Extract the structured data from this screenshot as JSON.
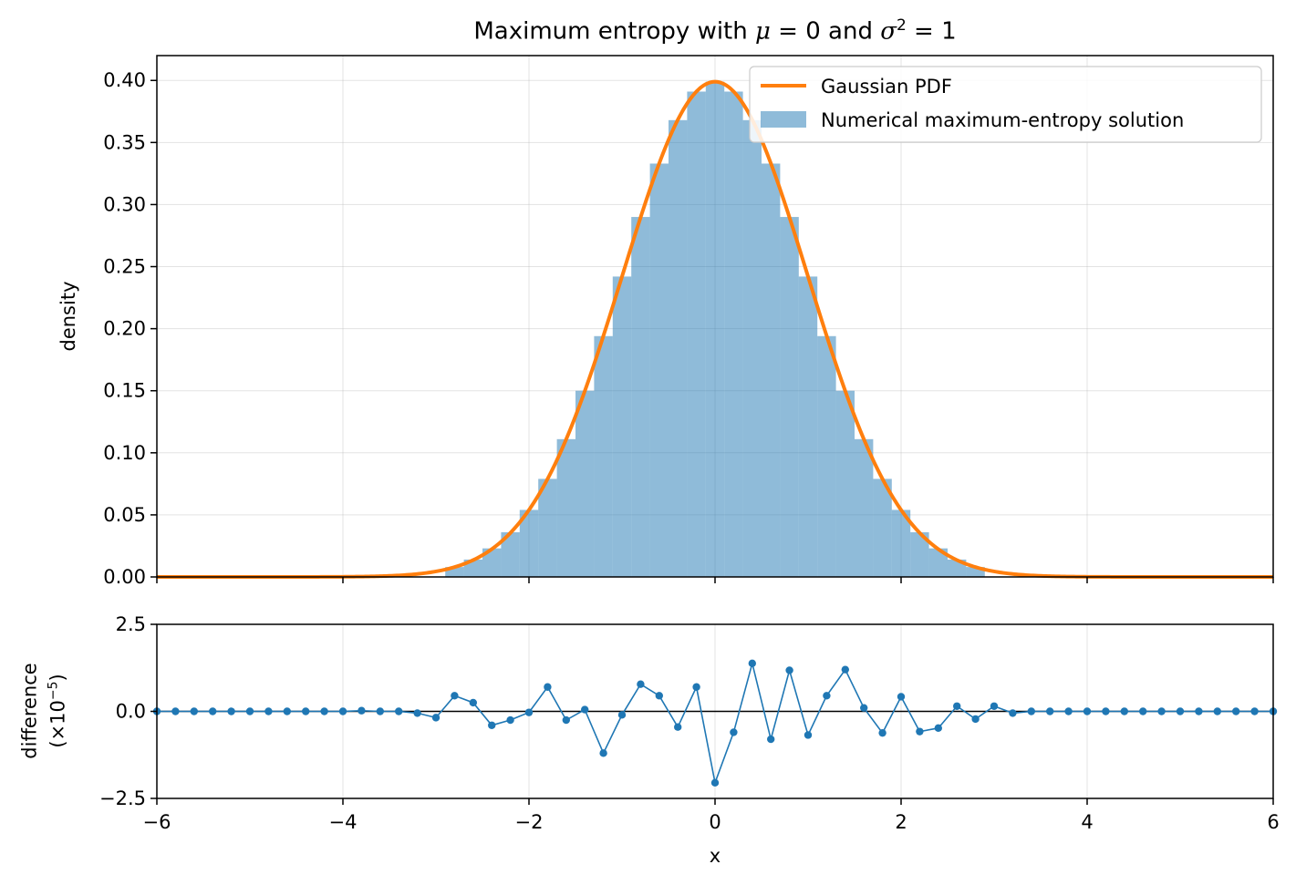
{
  "chart_data": [
    {
      "type": "bar",
      "title_prefix": "Maximum entropy with ",
      "title_mu": "μ",
      "title_eq1": " = 0 and ",
      "title_sigma": "σ",
      "title_sup": "2",
      "title_eq2": " = 1",
      "xlabel": "",
      "ylabel": "density",
      "xlim": [
        -6,
        6
      ],
      "ylim": [
        0,
        0.42
      ],
      "yticks": [
        "0.00",
        "0.05",
        "0.10",
        "0.15",
        "0.20",
        "0.25",
        "0.30",
        "0.35",
        "0.40"
      ],
      "grid": true,
      "legend_placement": "top-right",
      "series": [
        {
          "name": "Gaussian PDF",
          "kind": "line",
          "color": "#ff7f0e",
          "function": "normal_pdf",
          "mu": 0,
          "sigma2": 1
        },
        {
          "name": "Numerical maximum-entropy solution",
          "kind": "histogram",
          "color": "#1f77b4",
          "bin_width": 0.2,
          "bins": [
            {
              "x": -2.8,
              "y": 0.008
            },
            {
              "x": -2.6,
              "y": 0.014
            },
            {
              "x": -2.4,
              "y": 0.023
            },
            {
              "x": -2.2,
              "y": 0.036
            },
            {
              "x": -2.0,
              "y": 0.054
            },
            {
              "x": -1.8,
              "y": 0.079
            },
            {
              "x": -1.6,
              "y": 0.111
            },
            {
              "x": -1.4,
              "y": 0.15
            },
            {
              "x": -1.2,
              "y": 0.194
            },
            {
              "x": -1.0,
              "y": 0.242
            },
            {
              "x": -0.8,
              "y": 0.29
            },
            {
              "x": -0.6,
              "y": 0.333
            },
            {
              "x": -0.4,
              "y": 0.368
            },
            {
              "x": -0.2,
              "y": 0.391
            },
            {
              "x": 0.0,
              "y": 0.399
            },
            {
              "x": 0.2,
              "y": 0.391
            },
            {
              "x": 0.4,
              "y": 0.368
            },
            {
              "x": 0.6,
              "y": 0.333
            },
            {
              "x": 0.8,
              "y": 0.29
            },
            {
              "x": 1.0,
              "y": 0.242
            },
            {
              "x": 1.2,
              "y": 0.194
            },
            {
              "x": 1.4,
              "y": 0.15
            },
            {
              "x": 1.6,
              "y": 0.111
            },
            {
              "x": 1.8,
              "y": 0.079
            },
            {
              "x": 2.0,
              "y": 0.054
            },
            {
              "x": 2.2,
              "y": 0.036
            },
            {
              "x": 2.4,
              "y": 0.023
            },
            {
              "x": 2.6,
              "y": 0.014
            },
            {
              "x": 2.8,
              "y": 0.008
            }
          ]
        }
      ]
    },
    {
      "type": "line",
      "xlabel": "x",
      "ylabel_line1": "difference",
      "ylabel_open": "(×10",
      "ylabel_sup": "−5",
      "ylabel_close": ")",
      "xlim": [
        -6,
        6
      ],
      "ylim": [
        -2.5,
        2.5
      ],
      "xticks": [
        "−6",
        "−4",
        "−2",
        "0",
        "2",
        "4",
        "6"
      ],
      "yticks": [
        "−2.5",
        "0.0",
        "2.5"
      ],
      "grid": true,
      "zero_line": true,
      "series": [
        {
          "color": "#1f77b4",
          "x": [
            -6.0,
            -5.8,
            -5.6,
            -5.4,
            -5.2,
            -5.0,
            -4.8,
            -4.6,
            -4.4,
            -4.2,
            -4.0,
            -3.8,
            -3.6,
            -3.4,
            -3.2,
            -3.0,
            -2.8,
            -2.6,
            -2.4,
            -2.2,
            -2.0,
            -1.8,
            -1.6,
            -1.4,
            -1.2,
            -1.0,
            -0.8,
            -0.6,
            -0.4,
            -0.2,
            0.0,
            0.2,
            0.4,
            0.6,
            0.8,
            1.0,
            1.2,
            1.4,
            1.6,
            1.8,
            2.0,
            2.2,
            2.4,
            2.6,
            2.8,
            3.0,
            3.2,
            3.4,
            3.6,
            3.8,
            4.0,
            4.2,
            4.4,
            4.6,
            4.8,
            5.0,
            5.2,
            5.4,
            5.6,
            5.8,
            6.0
          ],
          "y": [
            0,
            0,
            0,
            0,
            0,
            0,
            0,
            0,
            0,
            0,
            0,
            0.02,
            0,
            0,
            -0.05,
            -0.18,
            0.45,
            0.25,
            -0.4,
            -0.25,
            -0.03,
            0.7,
            -0.25,
            0.05,
            -1.2,
            -0.1,
            0.78,
            0.45,
            -0.45,
            0.7,
            -2.05,
            -0.6,
            1.38,
            -0.8,
            1.18,
            -0.68,
            0.45,
            1.2,
            0.1,
            -0.62,
            0.42,
            -0.58,
            -0.48,
            0.15,
            -0.22,
            0.15,
            -0.05,
            0,
            0,
            0,
            0,
            0,
            0,
            0,
            0,
            0,
            0,
            0,
            0,
            0,
            0
          ]
        }
      ]
    }
  ]
}
